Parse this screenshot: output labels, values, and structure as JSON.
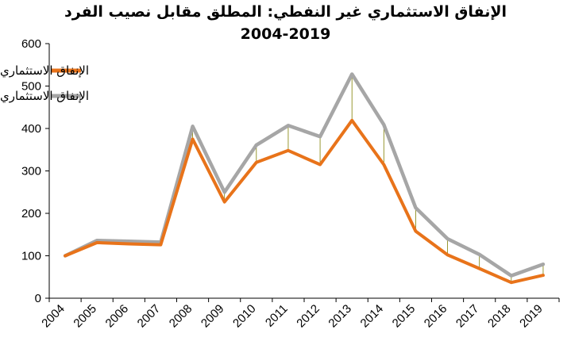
{
  "chart_data": {
    "type": "line",
    "title": "الإنفاق الاستثماري غير النفطي: المطلق مقابل نصيب الفرد",
    "subtitle": "2004-2019",
    "xlabel": "",
    "ylabel": "",
    "categories": [
      "2004",
      "2005",
      "2006",
      "2007",
      "2008",
      "2009",
      "2010",
      "2011",
      "2012",
      "2013",
      "2014",
      "2015",
      "2016",
      "2017",
      "2018",
      "2019"
    ],
    "ylim": [
      0,
      600
    ],
    "yticks": [
      0,
      100,
      200,
      300,
      400,
      500,
      600
    ],
    "grid": false,
    "legend_position": "top-left",
    "series": [
      {
        "name": "الإنفاق الاستثماري غير النفطي كنصيب الفرد",
        "color": "#E8731A",
        "values": [
          100,
          131,
          128,
          126,
          375,
          227,
          320,
          348,
          315,
          419,
          315,
          158,
          102,
          70,
          37,
          54
        ]
      },
      {
        "name": "الإنفاق الاستثماري غير النفطي",
        "color": "#A6A6A6",
        "values": [
          100,
          136,
          134,
          132,
          405,
          250,
          361,
          407,
          381,
          528,
          409,
          213,
          140,
          103,
          53,
          80
        ]
      }
    ],
    "drop_lines_color": "#7F7F00"
  }
}
